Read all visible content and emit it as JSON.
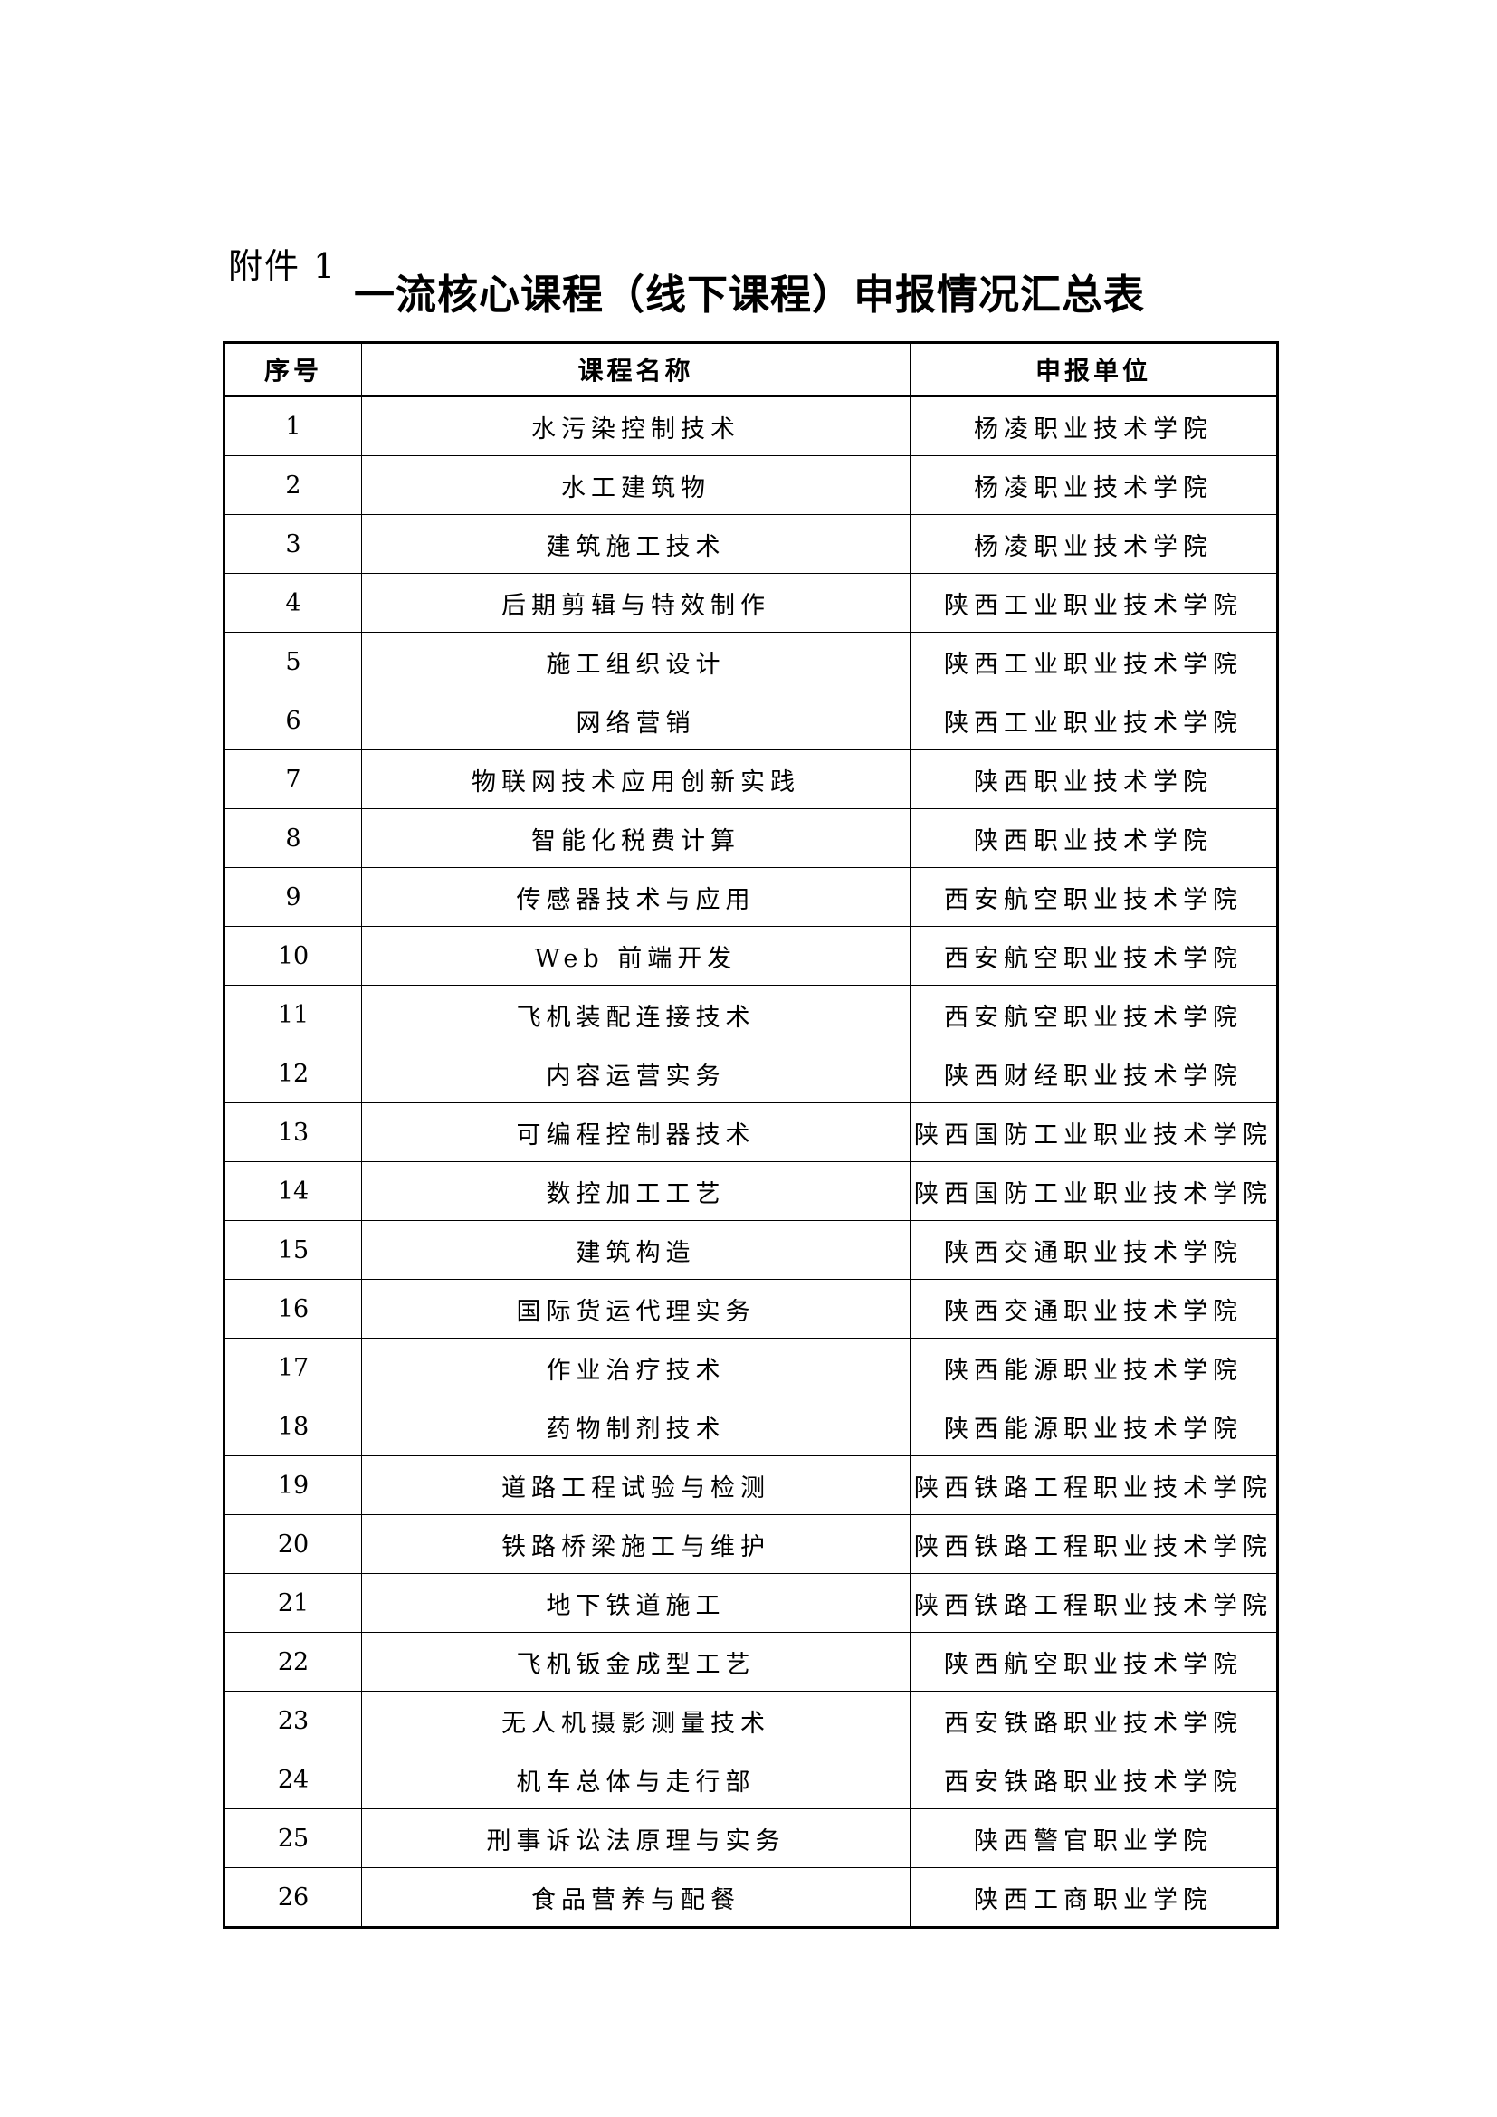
{
  "page": {
    "attachment_label": "附件 1",
    "title": "一流核心课程（线下课程）申报情况汇总表"
  },
  "table": {
    "headers": [
      "序号",
      "课程名称",
      "申报单位"
    ],
    "rows": [
      {
        "no": "1",
        "course": "水污染控制技术",
        "unit": "杨凌职业技术学院"
      },
      {
        "no": "2",
        "course": "水工建筑物",
        "unit": "杨凌职业技术学院"
      },
      {
        "no": "3",
        "course": "建筑施工技术",
        "unit": "杨凌职业技术学院"
      },
      {
        "no": "4",
        "course": "后期剪辑与特效制作",
        "unit": "陕西工业职业技术学院"
      },
      {
        "no": "5",
        "course": "施工组织设计",
        "unit": "陕西工业职业技术学院"
      },
      {
        "no": "6",
        "course": "网络营销",
        "unit": "陕西工业职业技术学院"
      },
      {
        "no": "7",
        "course": "物联网技术应用创新实践",
        "unit": "陕西职业技术学院"
      },
      {
        "no": "8",
        "course": "智能化税费计算",
        "unit": "陕西职业技术学院"
      },
      {
        "no": "9",
        "course": "传感器技术与应用",
        "unit": "西安航空职业技术学院"
      },
      {
        "no": "10",
        "course": "Web 前端开发",
        "unit": "西安航空职业技术学院"
      },
      {
        "no": "11",
        "course": "飞机装配连接技术",
        "unit": "西安航空职业技术学院"
      },
      {
        "no": "12",
        "course": "内容运营实务",
        "unit": "陕西财经职业技术学院"
      },
      {
        "no": "13",
        "course": "可编程控制器技术",
        "unit": "陕西国防工业职业技术学院"
      },
      {
        "no": "14",
        "course": "数控加工工艺",
        "unit": "陕西国防工业职业技术学院"
      },
      {
        "no": "15",
        "course": "建筑构造",
        "unit": "陕西交通职业技术学院"
      },
      {
        "no": "16",
        "course": "国际货运代理实务",
        "unit": "陕西交通职业技术学院"
      },
      {
        "no": "17",
        "course": "作业治疗技术",
        "unit": "陕西能源职业技术学院"
      },
      {
        "no": "18",
        "course": "药物制剂技术",
        "unit": "陕西能源职业技术学院"
      },
      {
        "no": "19",
        "course": "道路工程试验与检测",
        "unit": "陕西铁路工程职业技术学院"
      },
      {
        "no": "20",
        "course": "铁路桥梁施工与维护",
        "unit": "陕西铁路工程职业技术学院"
      },
      {
        "no": "21",
        "course": "地下铁道施工",
        "unit": "陕西铁路工程职业技术学院"
      },
      {
        "no": "22",
        "course": "飞机钣金成型工艺",
        "unit": "陕西航空职业技术学院"
      },
      {
        "no": "23",
        "course": "无人机摄影测量技术",
        "unit": "西安铁路职业技术学院"
      },
      {
        "no": "24",
        "course": "机车总体与走行部",
        "unit": "西安铁路职业技术学院"
      },
      {
        "no": "25",
        "course": "刑事诉讼法原理与实务",
        "unit": "陕西警官职业学院"
      },
      {
        "no": "26",
        "course": "食品营养与配餐",
        "unit": "陕西工商职业学院"
      }
    ]
  }
}
